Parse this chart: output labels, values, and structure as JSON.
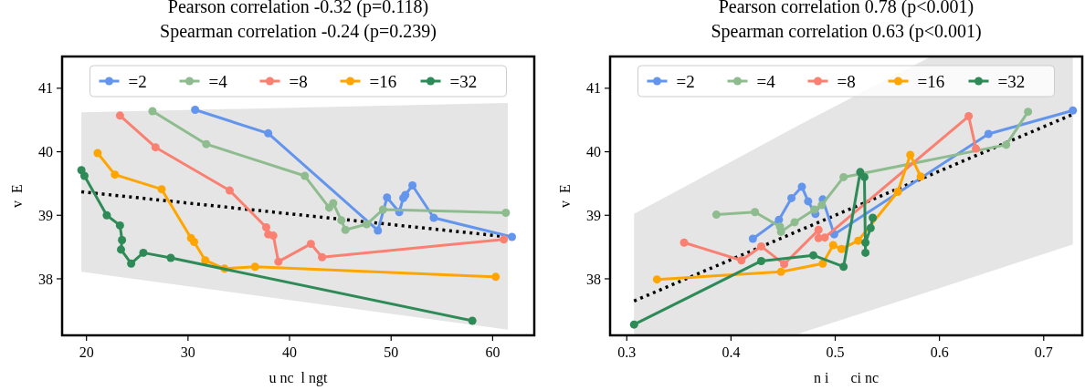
{
  "chart_data": [
    {
      "type": "line",
      "title": "Pearson correlation -0.32 (p=0.118)\nSpearman correlation -0.24 (p=0.239)",
      "xlabel": "u nc  l ngt",
      "ylabel": "v  E",
      "xlim": [
        17.6,
        64.1
      ],
      "ylim": [
        37.11,
        41.5
      ],
      "xticks": [
        20,
        30,
        40,
        50,
        60
      ],
      "yticks": [
        38,
        39,
        40,
        41
      ],
      "legend": "top",
      "marker": "circle",
      "grid": false,
      "series": [
        {
          "type": "line",
          "marker": "none",
          "line_style": "dotted",
          "color": "#000000",
          "x": [
            19.5,
            61.5
          ],
          "values": [
            39.37,
            38.66
          ],
          "lower": [
            38.11,
            37.2
          ],
          "upper": [
            40.62,
            40.77
          ]
        },
        {
          "name": "=2",
          "color": "#6495ed",
          "x": [
            30.7,
            37.9,
            48.7,
            49.6,
            50.8,
            51.2,
            51.4,
            52.1,
            54.2,
            61.9
          ],
          "values": [
            40.66,
            40.29,
            38.76,
            39.28,
            39.05,
            39.27,
            39.32,
            39.47,
            38.96,
            38.66
          ]
        },
        {
          "name": "=4",
          "color": "#8fbc8f",
          "x": [
            26.5,
            31.8,
            41.5,
            43.9,
            44.3,
            45.1,
            45.5,
            47.6,
            49.2,
            61.3
          ],
          "values": [
            40.64,
            40.12,
            39.62,
            39.12,
            39.19,
            38.92,
            38.77,
            38.86,
            39.09,
            39.04
          ]
        },
        {
          "name": "=8",
          "color": "#fa8072",
          "x": [
            23.3,
            26.8,
            34.1,
            37.7,
            37.9,
            38.4,
            38.9,
            42.1,
            43.2,
            61.1
          ],
          "values": [
            40.57,
            40.07,
            39.39,
            38.81,
            38.7,
            38.68,
            38.27,
            38.55,
            38.34,
            38.62
          ]
        },
        {
          "name": "=16",
          "color": "#ffa500",
          "x": [
            21.1,
            22.8,
            27.4,
            30.3,
            30.6,
            31.7,
            33.6,
            36.6,
            60.3
          ],
          "values": [
            39.98,
            39.64,
            39.41,
            38.64,
            38.58,
            38.29,
            38.16,
            38.19,
            38.03
          ]
        },
        {
          "name": "=32",
          "color": "#2e8b57",
          "x": [
            19.5,
            19.8,
            22.0,
            23.3,
            23.5,
            23.4,
            24.4,
            25.6,
            28.3,
            58.0
          ],
          "values": [
            39.71,
            39.62,
            39.0,
            38.84,
            38.61,
            38.46,
            38.24,
            38.41,
            38.33,
            37.34
          ]
        }
      ]
    },
    {
      "type": "line",
      "title": "Pearson correlation 0.78 (p<0.001)\nSpearman correlation 0.63 (p<0.001)",
      "xlabel": "n i      ci nc",
      "ylabel": "v  E",
      "xlim": [
        0.284,
        0.737
      ],
      "ylim": [
        37.11,
        41.5
      ],
      "xticks": [
        0.3,
        0.4,
        0.5,
        0.6,
        0.7
      ],
      "yticks": [
        38,
        39,
        40,
        41
      ],
      "legend": "top",
      "marker": "circle",
      "grid": false,
      "series": [
        {
          "type": "line",
          "marker": "none",
          "line_style": "dotted",
          "color": "#000000",
          "x": [
            0.307,
            0.464,
            0.592,
            0.728
          ],
          "values": [
            37.65,
            38.75,
            39.64,
            40.59
          ],
          "lower": [
            37.11,
            37.13,
            37.81,
            38.54
          ],
          "upper": [
            39.02,
            40.41,
            41.5,
            41.5
          ]
        },
        {
          "name": "=2",
          "color": "#6495ed",
          "x": [
            0.421,
            0.446,
            0.458,
            0.468,
            0.474,
            0.481,
            0.488,
            0.499,
            0.647,
            0.728
          ],
          "values": [
            38.63,
            38.93,
            39.27,
            39.45,
            39.22,
            39.02,
            39.25,
            38.7,
            40.28,
            40.65
          ]
        },
        {
          "name": "=4",
          "color": "#8fbc8f",
          "x": [
            0.386,
            0.423,
            0.447,
            0.448,
            0.461,
            0.48,
            0.487,
            0.508,
            0.664,
            0.685
          ],
          "values": [
            39.01,
            39.05,
            38.82,
            38.74,
            38.89,
            39.09,
            39.16,
            39.6,
            40.11,
            40.63
          ]
        },
        {
          "name": "=8",
          "color": "#fa8072",
          "x": [
            0.355,
            0.41,
            0.429,
            0.451,
            0.484,
            0.484,
            0.49,
            0.628,
            0.635
          ],
          "values": [
            38.57,
            38.29,
            38.51,
            38.23,
            38.77,
            38.64,
            38.65,
            40.56,
            40.05
          ]
        },
        {
          "name": "=16",
          "color": "#ffa500",
          "x": [
            0.329,
            0.448,
            0.488,
            0.498,
            0.506,
            0.522,
            0.56,
            0.572,
            0.582
          ],
          "values": [
            37.99,
            38.11,
            38.24,
            38.53,
            38.47,
            38.6,
            39.37,
            39.95,
            39.61
          ]
        },
        {
          "name": "=32",
          "color": "#2e8b57",
          "x": [
            0.307,
            0.429,
            0.479,
            0.508,
            0.524,
            0.528,
            0.529,
            0.529,
            0.534,
            0.536
          ],
          "values": [
            37.28,
            38.28,
            38.37,
            38.19,
            39.68,
            39.6,
            38.41,
            38.57,
            38.8,
            38.96
          ]
        }
      ]
    }
  ]
}
